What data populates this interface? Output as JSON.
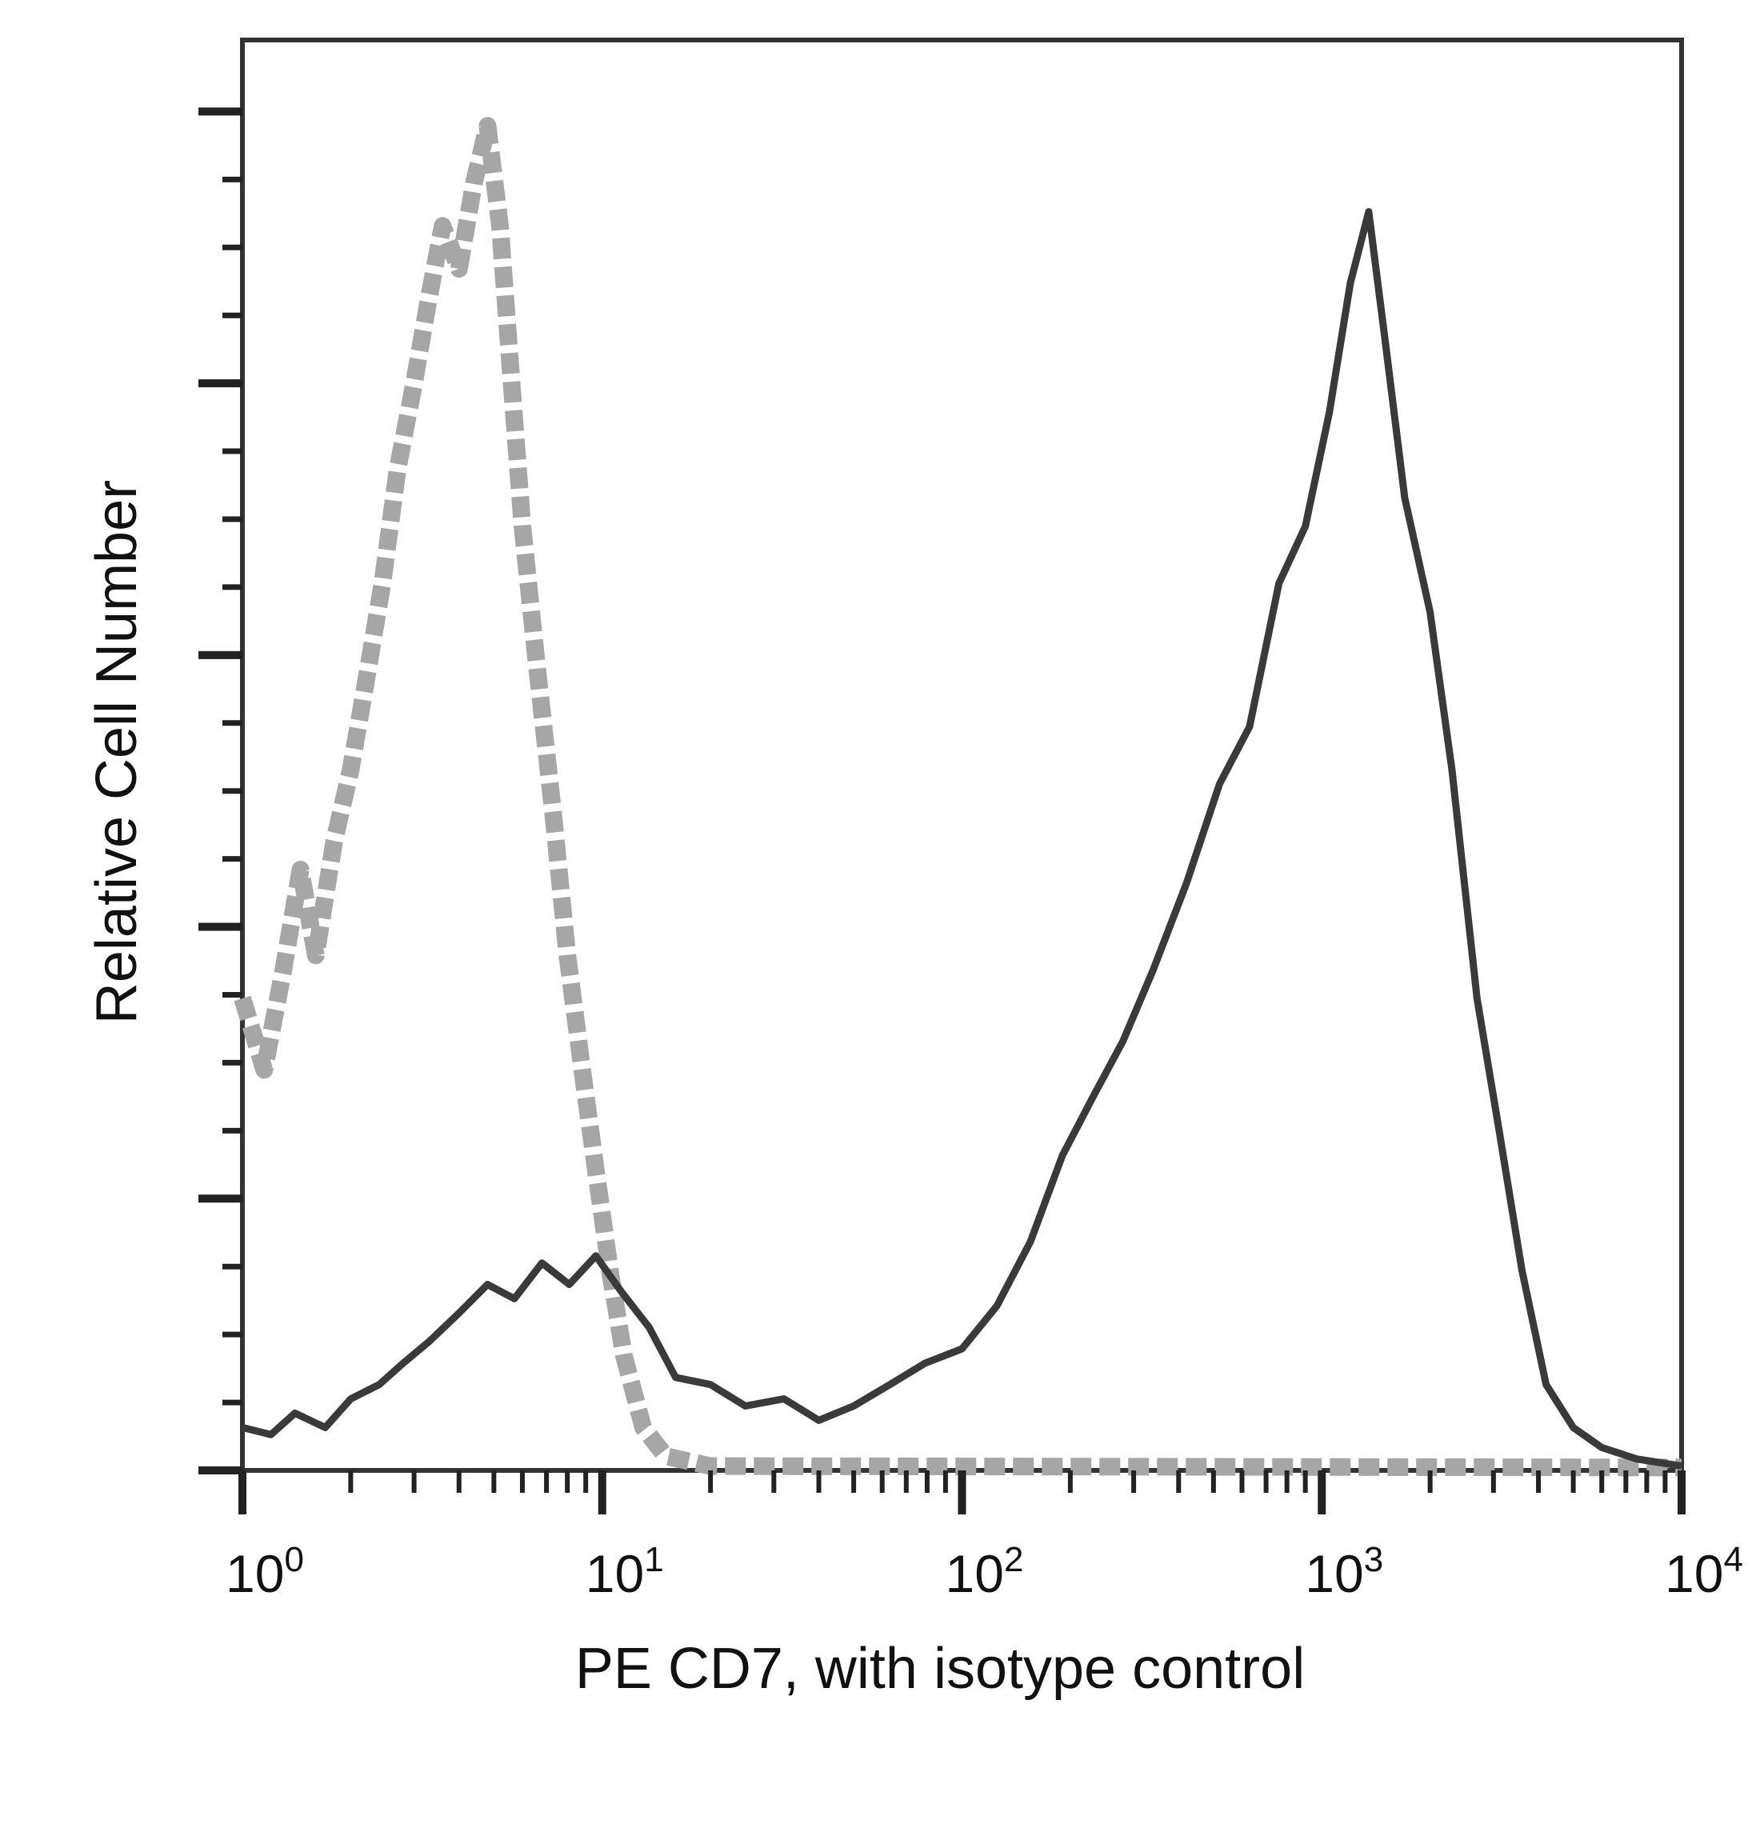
{
  "chart_data": {
    "type": "area",
    "title": "",
    "xlabel": "PE CD7, with isotype control",
    "ylabel": "Relative Cell Number",
    "x_scale": "log10",
    "xlim": [
      1,
      10000
    ],
    "ylim": [
      0,
      100
    ],
    "x_ticks": [
      {
        "base": "10",
        "exp": "0",
        "value": 1
      },
      {
        "base": "10",
        "exp": "1",
        "value": 10
      },
      {
        "base": "10",
        "exp": "2",
        "value": 100
      },
      {
        "base": "10",
        "exp": "3",
        "value": 1000
      },
      {
        "base": "10",
        "exp": "4",
        "value": 10000
      }
    ],
    "y_major_ticks": [
      0,
      19,
      38,
      57,
      76,
      95
    ],
    "y_minor_ticks": [
      4.75,
      9.5,
      14.25,
      23.75,
      28.5,
      33.25,
      42.75,
      47.5,
      52.25,
      61.75,
      66.5,
      71.25,
      80.75,
      85.5,
      90.25
    ],
    "grid": false,
    "legend": "none",
    "series": [
      {
        "color": "#a6a6a6",
        "style": "dashed",
        "points": [
          [
            1.0,
            33
          ],
          [
            1.15,
            28
          ],
          [
            1.3,
            35
          ],
          [
            1.45,
            42
          ],
          [
            1.6,
            36
          ],
          [
            1.8,
            44
          ],
          [
            2.0,
            49
          ],
          [
            2.2,
            55
          ],
          [
            2.45,
            62
          ],
          [
            2.7,
            70
          ],
          [
            3.0,
            76
          ],
          [
            3.3,
            82
          ],
          [
            3.6,
            87
          ],
          [
            4.0,
            84
          ],
          [
            4.4,
            90
          ],
          [
            4.8,
            94
          ],
          [
            5.2,
            87
          ],
          [
            5.6,
            76
          ],
          [
            6.0,
            66
          ],
          [
            6.6,
            56
          ],
          [
            7.3,
            46
          ],
          [
            8.0,
            36
          ],
          [
            8.8,
            28
          ],
          [
            9.6,
            21
          ],
          [
            10.5,
            14
          ],
          [
            11.5,
            8
          ],
          [
            13.0,
            3
          ],
          [
            15.0,
            1
          ],
          [
            20.0,
            0.3
          ],
          [
            10000,
            0.2
          ]
        ]
      },
      {
        "color": "#3a3a3a",
        "style": "solid",
        "points": [
          [
            1.0,
            3
          ],
          [
            1.2,
            2.5
          ],
          [
            1.4,
            4
          ],
          [
            1.7,
            3
          ],
          [
            2.0,
            5
          ],
          [
            2.4,
            6
          ],
          [
            2.8,
            7.5
          ],
          [
            3.3,
            9
          ],
          [
            4.0,
            11
          ],
          [
            4.8,
            13
          ],
          [
            5.7,
            12
          ],
          [
            6.8,
            14.5
          ],
          [
            8.1,
            13
          ],
          [
            9.6,
            15
          ],
          [
            11.3,
            12.5
          ],
          [
            13.5,
            10
          ],
          [
            16,
            6.5
          ],
          [
            20,
            6
          ],
          [
            25,
            4.5
          ],
          [
            32,
            5
          ],
          [
            40,
            3.5
          ],
          [
            50,
            4.5
          ],
          [
            63,
            6
          ],
          [
            79,
            7.5
          ],
          [
            100,
            8.5
          ],
          [
            125,
            11.5
          ],
          [
            155,
            16
          ],
          [
            190,
            22
          ],
          [
            230,
            26
          ],
          [
            280,
            30
          ],
          [
            340,
            35
          ],
          [
            420,
            41
          ],
          [
            520,
            48
          ],
          [
            630,
            52
          ],
          [
            760,
            62
          ],
          [
            900,
            66
          ],
          [
            1050,
            74
          ],
          [
            1200,
            83
          ],
          [
            1350,
            88
          ],
          [
            1500,
            79
          ],
          [
            1700,
            68
          ],
          [
            2000,
            60
          ],
          [
            2300,
            49
          ],
          [
            2700,
            33
          ],
          [
            3100,
            24
          ],
          [
            3600,
            14
          ],
          [
            4200,
            6
          ],
          [
            5000,
            3
          ],
          [
            6000,
            1.6
          ],
          [
            7500,
            0.8
          ],
          [
            10000,
            0.3
          ]
        ]
      }
    ]
  }
}
